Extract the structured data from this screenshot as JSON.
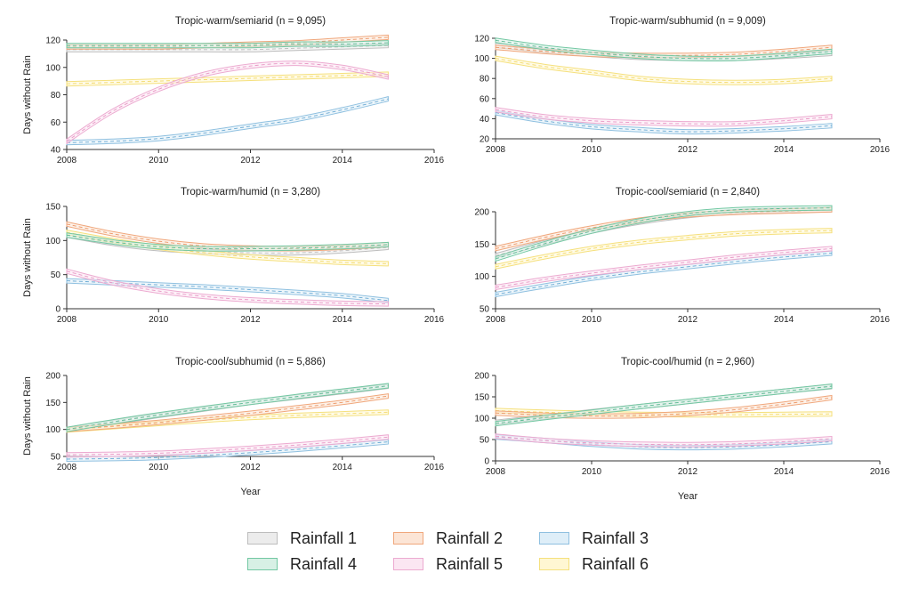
{
  "chart_data": [
    {
      "type": "line",
      "title": "Tropic-warm/semiarid (n = 9,095)",
      "ylabel": "Days without Rain",
      "xlabel": "",
      "xlim": [
        2008,
        2016
      ],
      "xticks": [
        2008,
        2010,
        2012,
        2014,
        2016
      ],
      "ylim": [
        40,
        120
      ],
      "yticks": [
        40,
        60,
        80,
        100,
        120
      ],
      "x": [
        2008,
        2009,
        2010,
        2011,
        2012,
        2013,
        2014,
        2015
      ],
      "series": [
        {
          "name": "Rainfall 1",
          "values": [
            113,
            113,
            113,
            113,
            113,
            114,
            115,
            116
          ]
        },
        {
          "name": "Rainfall 2",
          "values": [
            115,
            115,
            115,
            116,
            117,
            118,
            120,
            122
          ]
        },
        {
          "name": "Rainfall 3",
          "values": [
            45,
            46,
            48,
            52,
            57,
            62,
            69,
            77
          ]
        },
        {
          "name": "Rainfall 4",
          "values": [
            116,
            116,
            116,
            116,
            116,
            117,
            117,
            118
          ]
        },
        {
          "name": "Rainfall 5",
          "values": [
            46,
            68,
            84,
            95,
            101,
            103,
            100,
            93
          ]
        },
        {
          "name": "Rainfall 6",
          "values": [
            88,
            89,
            90,
            91,
            92,
            93,
            94,
            95
          ]
        }
      ]
    },
    {
      "type": "line",
      "title": "Tropic-warm/subhumid (n = 9,009)",
      "ylabel": "",
      "xlabel": "",
      "xlim": [
        2008,
        2016
      ],
      "xticks": [
        2008,
        2010,
        2012,
        2014,
        2016
      ],
      "ylim": [
        20,
        120
      ],
      "yticks": [
        20,
        40,
        60,
        80,
        100,
        120
      ],
      "x": [
        2008,
        2009,
        2010,
        2011,
        2012,
        2013,
        2014,
        2015
      ],
      "series": [
        {
          "name": "Rainfall 1",
          "values": [
            113,
            108,
            104,
            101,
            100,
            100,
            102,
            105
          ]
        },
        {
          "name": "Rainfall 2",
          "values": [
            111,
            107,
            104,
            103,
            103,
            104,
            107,
            111
          ]
        },
        {
          "name": "Rainfall 3",
          "values": [
            46,
            38,
            32,
            29,
            27,
            28,
            30,
            33
          ]
        },
        {
          "name": "Rainfall 4",
          "values": [
            118,
            111,
            106,
            102,
            100,
            100,
            103,
            107
          ]
        },
        {
          "name": "Rainfall 5",
          "values": [
            49,
            42,
            38,
            36,
            35,
            35,
            38,
            42
          ]
        },
        {
          "name": "Rainfall 6",
          "values": [
            100,
            92,
            86,
            80,
            77,
            76,
            77,
            80
          ]
        }
      ]
    },
    {
      "type": "line",
      "title": "Tropic-warm/humid (n = 3,280)",
      "ylabel": "Days without Rain",
      "xlabel": "",
      "xlim": [
        2008,
        2016
      ],
      "xticks": [
        2008,
        2010,
        2012,
        2014,
        2016
      ],
      "ylim": [
        0,
        150
      ],
      "yticks": [
        0,
        50,
        100,
        150
      ],
      "x": [
        2008,
        2009,
        2010,
        2011,
        2012,
        2013,
        2014,
        2015
      ],
      "series": [
        {
          "name": "Rainfall 1",
          "values": [
            108,
            96,
            88,
            84,
            82,
            82,
            85,
            90
          ]
        },
        {
          "name": "Rainfall 2",
          "values": [
            124,
            110,
            99,
            92,
            89,
            88,
            90,
            94
          ]
        },
        {
          "name": "Rainfall 3",
          "values": [
            41,
            38,
            35,
            32,
            28,
            24,
            19,
            12
          ]
        },
        {
          "name": "Rainfall 4",
          "values": [
            108,
            98,
            91,
            88,
            88,
            89,
            91,
            94
          ]
        },
        {
          "name": "Rainfall 5",
          "values": [
            55,
            38,
            26,
            18,
            13,
            10,
            8,
            7
          ]
        },
        {
          "name": "Rainfall 6",
          "values": [
            112,
            100,
            90,
            82,
            76,
            72,
            68,
            66
          ]
        }
      ]
    },
    {
      "type": "line",
      "title": "Tropic-cool/semiarid (n = 2,840)",
      "ylabel": "",
      "xlabel": "",
      "xlim": [
        2008,
        2016
      ],
      "xticks": [
        2008,
        2010,
        2012,
        2014,
        2016
      ],
      "ylim": [
        50,
        200
      ],
      "yticks": [
        50,
        100,
        150,
        200
      ],
      "x": [
        2008,
        2009,
        2010,
        2011,
        2012,
        2013,
        2014,
        2015
      ],
      "series": [
        {
          "name": "Rainfall 1",
          "values": [
            132,
            152,
            170,
            184,
            194,
            200,
            202,
            203
          ]
        },
        {
          "name": "Rainfall 2",
          "values": [
            143,
            160,
            175,
            187,
            195,
            199,
            201,
            203
          ]
        },
        {
          "name": "Rainfall 3",
          "values": [
            72,
            85,
            97,
            107,
            115,
            123,
            130,
            136
          ]
        },
        {
          "name": "Rainfall 4",
          "values": [
            127,
            150,
            170,
            186,
            197,
            203,
            205,
            206
          ]
        },
        {
          "name": "Rainfall 5",
          "values": [
            83,
            95,
            105,
            114,
            122,
            130,
            137,
            143
          ]
        },
        {
          "name": "Rainfall 6",
          "values": [
            115,
            130,
            143,
            153,
            160,
            166,
            169,
            171
          ]
        }
      ]
    },
    {
      "type": "line",
      "title": "Tropic-cool/subhumid (n = 5,886)",
      "ylabel": "Days without Rain",
      "xlabel": "Year",
      "xlim": [
        2008,
        2016
      ],
      "xticks": [
        2008,
        2010,
        2012,
        2014,
        2016
      ],
      "ylim": [
        50,
        200
      ],
      "yticks": [
        50,
        100,
        150,
        200
      ],
      "x": [
        2008,
        2009,
        2010,
        2011,
        2012,
        2013,
        2014,
        2015
      ],
      "series": [
        {
          "name": "Rainfall 1",
          "values": [
            100,
            113,
            126,
            138,
            150,
            160,
            170,
            180
          ]
        },
        {
          "name": "Rainfall 2",
          "values": [
            100,
            106,
            113,
            121,
            130,
            140,
            150,
            162
          ]
        },
        {
          "name": "Rainfall 3",
          "values": [
            45,
            46,
            48,
            52,
            57,
            63,
            70,
            77
          ]
        },
        {
          "name": "Rainfall 4",
          "values": [
            100,
            114,
            127,
            139,
            150,
            161,
            171,
            181
          ]
        },
        {
          "name": "Rainfall 5",
          "values": [
            53,
            54,
            56,
            60,
            65,
            71,
            78,
            86
          ]
        },
        {
          "name": "Rainfall 6",
          "values": [
            99,
            105,
            111,
            117,
            122,
            126,
            129,
            132
          ]
        }
      ]
    },
    {
      "type": "line",
      "title": "Tropic-cool/humid (n = 2,960)",
      "ylabel": "",
      "xlabel": "Year",
      "xlim": [
        2008,
        2016
      ],
      "xticks": [
        2008,
        2010,
        2012,
        2014,
        2016
      ],
      "ylim": [
        0,
        200
      ],
      "yticks": [
        0,
        50,
        100,
        150,
        200
      ],
      "x": [
        2008,
        2009,
        2010,
        2011,
        2012,
        2013,
        2014,
        2015
      ],
      "series": [
        {
          "name": "Rainfall 1",
          "values": [
            90,
            103,
            115,
            127,
            139,
            151,
            163,
            174
          ]
        },
        {
          "name": "Rainfall 2",
          "values": [
            112,
            107,
            105,
            106,
            111,
            120,
            133,
            148
          ]
        },
        {
          "name": "Rainfall 3",
          "values": [
            56,
            48,
            39,
            33,
            31,
            33,
            38,
            45
          ]
        },
        {
          "name": "Rainfall 4",
          "values": [
            87,
            101,
            114,
            127,
            139,
            151,
            163,
            175
          ]
        },
        {
          "name": "Rainfall 5",
          "values": [
            58,
            48,
            42,
            39,
            38,
            40,
            45,
            52
          ]
        },
        {
          "name": "Rainfall 6",
          "values": [
            118,
            114,
            111,
            109,
            108,
            108,
            109,
            110
          ]
        }
      ]
    }
  ],
  "legend": {
    "items": [
      {
        "name": "Rainfall 1",
        "fill": "#ececec",
        "stroke": "#bdbdbd",
        "line": "#bdbdbd"
      },
      {
        "name": "Rainfall 2",
        "fill": "#fce5d6",
        "stroke": "#f0a77c",
        "line": "#ec9666"
      },
      {
        "name": "Rainfall 3",
        "fill": "#deeef8",
        "stroke": "#8fc0e0",
        "line": "#6aa9d3"
      },
      {
        "name": "Rainfall 4",
        "fill": "#d7f0e5",
        "stroke": "#73c8a3",
        "line": "#5bbb93"
      },
      {
        "name": "Rainfall 5",
        "fill": "#fbe6f2",
        "stroke": "#ecaad0",
        "line": "#e895c4"
      },
      {
        "name": "Rainfall 6",
        "fill": "#fff7d3",
        "stroke": "#f5e07d",
        "line": "#f3d865"
      }
    ]
  }
}
